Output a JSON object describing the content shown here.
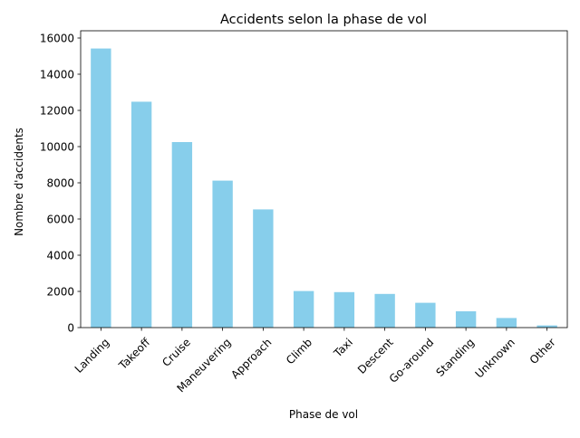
{
  "chart_data": {
    "type": "bar",
    "title": "Accidents selon la phase de vol",
    "xlabel": "Phase de vol",
    "ylabel": "Nombre d'accidents",
    "categories": [
      "Landing",
      "Takeoff",
      "Cruise",
      "Maneuvering",
      "Approach",
      "Climb",
      "Taxi",
      "Descent",
      "Go-around",
      "Standing",
      "Unknown",
      "Other"
    ],
    "values": [
      15420,
      12480,
      10250,
      8120,
      6530,
      2020,
      1960,
      1860,
      1370,
      900,
      530,
      120
    ],
    "yticks": [
      0,
      2000,
      4000,
      6000,
      8000,
      10000,
      12000,
      14000,
      16000
    ],
    "ylim": [
      0,
      16400
    ],
    "bar_color": "#87ceeb",
    "grid": false,
    "legend": false
  }
}
